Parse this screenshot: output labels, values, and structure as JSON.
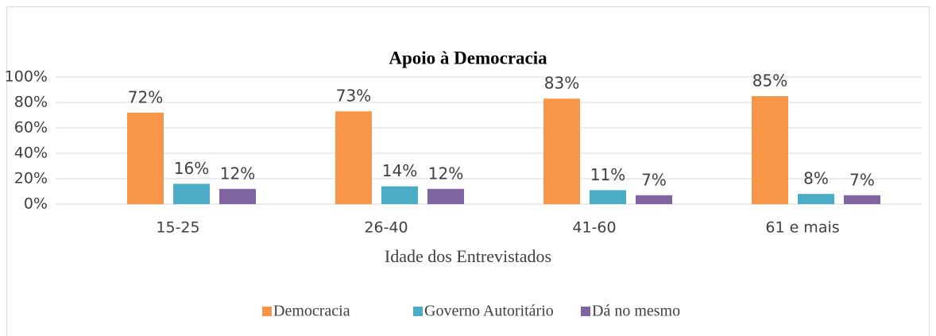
{
  "chart_data": {
    "type": "bar",
    "title": "Apoio à Democracia",
    "x_label": "Idade dos Entrevistados",
    "categories": [
      "15-25",
      "26-40",
      "41-60",
      "61 e mais"
    ],
    "series": [
      {
        "name": "Democracia",
        "color": "#f79646",
        "values": [
          72,
          73,
          83,
          85
        ],
        "value_labels": [
          "72%",
          "73%",
          "83%",
          "85%"
        ]
      },
      {
        "name": "Governo Autoritário",
        "color": "#4bacc6",
        "values": [
          16,
          14,
          11,
          8
        ],
        "value_labels": [
          "16%",
          "14%",
          "11%",
          "8%"
        ]
      },
      {
        "name": "Dá no mesmo",
        "color": "#8064a2",
        "values": [
          12,
          12,
          7,
          7
        ],
        "value_labels": [
          "12%",
          "12%",
          "7%",
          "7%"
        ]
      }
    ],
    "ylim": [
      0,
      100
    ],
    "yticks": [
      {
        "value": 0,
        "label": "0%"
      },
      {
        "value": 20,
        "label": "20%"
      },
      {
        "value": 40,
        "label": "40%"
      },
      {
        "value": 60,
        "label": "60%"
      },
      {
        "value": 80,
        "label": "80%"
      },
      {
        "value": 100,
        "label": "100%"
      }
    ],
    "grid": true,
    "legend": "bottom"
  }
}
